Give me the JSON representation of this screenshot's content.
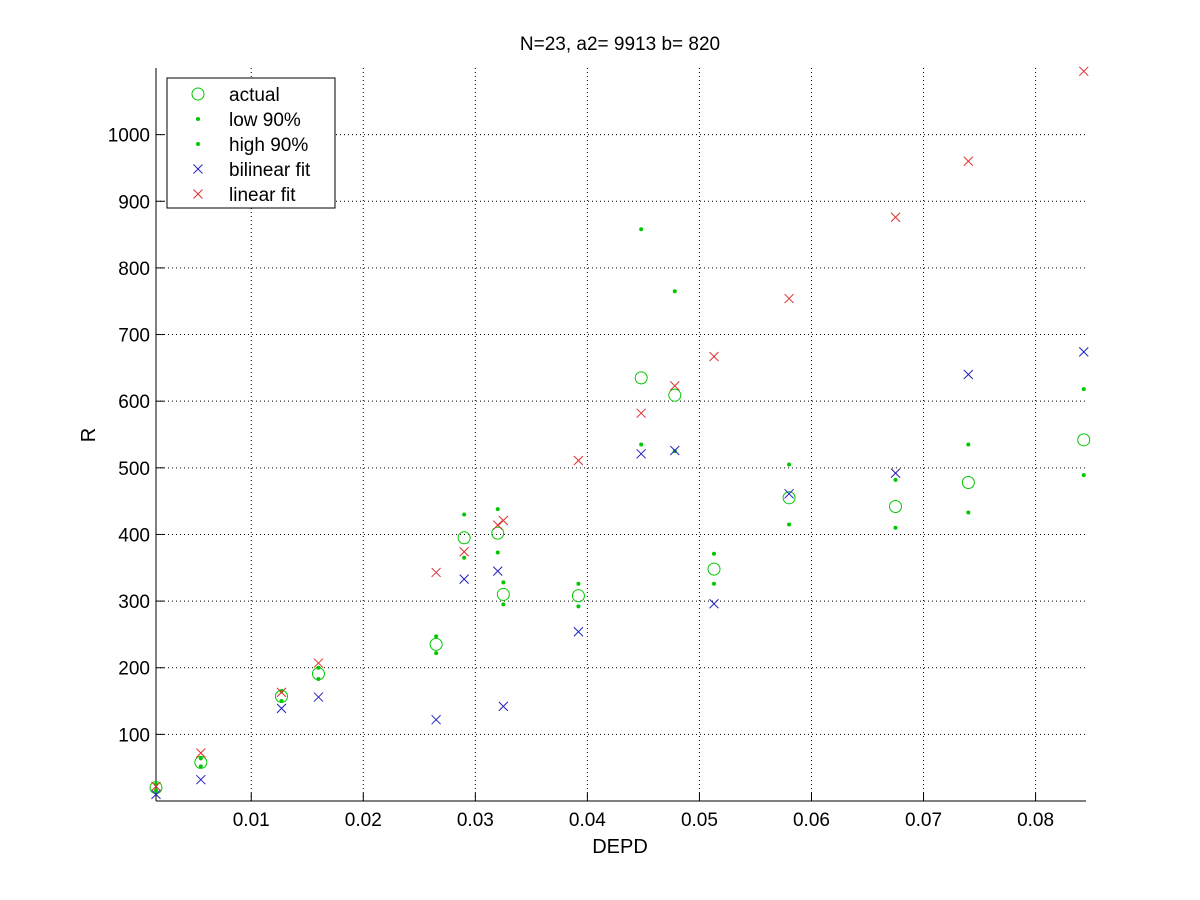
{
  "chart_data": {
    "type": "scatter",
    "title": "N=23, a2= 9913 b=  820",
    "xlabel": "DEPD",
    "ylabel": "R",
    "xlim": [
      0.0015,
      0.0845
    ],
    "ylim": [
      0,
      1100
    ],
    "xticks": [
      0.01,
      0.02,
      0.03,
      0.04,
      0.05,
      0.06,
      0.07,
      0.08
    ],
    "xtick_labels": [
      "0.01",
      "0.02",
      "0.03",
      "0.04",
      "0.05",
      "0.06",
      "0.07",
      "0.08"
    ],
    "yticks": [
      100,
      200,
      300,
      400,
      500,
      600,
      700,
      800,
      900,
      1000
    ],
    "ytick_labels": [
      "100",
      "200",
      "300",
      "400",
      "500",
      "600",
      "700",
      "800",
      "900",
      "1000"
    ],
    "grid": true,
    "legend_position": "top-left",
    "series": [
      {
        "name": "actual",
        "marker": "circle",
        "color": "#00c800",
        "points": [
          [
            0.0015,
            20
          ],
          [
            0.0055,
            58
          ],
          [
            0.0127,
            157
          ],
          [
            0.016,
            191
          ],
          [
            0.0265,
            235
          ],
          [
            0.029,
            395
          ],
          [
            0.032,
            402
          ],
          [
            0.0325,
            310
          ],
          [
            0.0392,
            308
          ],
          [
            0.0448,
            635
          ],
          [
            0.0478,
            609
          ],
          [
            0.0513,
            348
          ],
          [
            0.058,
            455
          ],
          [
            0.0675,
            442
          ],
          [
            0.074,
            478
          ],
          [
            0.0843,
            542
          ]
        ]
      },
      {
        "name": "low 90%",
        "marker": "dot",
        "color": "#00c800",
        "points": [
          [
            0.0015,
            16
          ],
          [
            0.0055,
            52
          ],
          [
            0.0127,
            150
          ],
          [
            0.016,
            183
          ],
          [
            0.0265,
            222
          ],
          [
            0.029,
            365
          ],
          [
            0.032,
            373
          ],
          [
            0.0325,
            295
          ],
          [
            0.0392,
            292
          ],
          [
            0.0448,
            535
          ],
          [
            0.0478,
            525
          ],
          [
            0.0513,
            326
          ],
          [
            0.058,
            415
          ],
          [
            0.0675,
            410
          ],
          [
            0.074,
            433
          ],
          [
            0.0843,
            489
          ]
        ]
      },
      {
        "name": "high 90%",
        "marker": "dot",
        "color": "#00c800",
        "points": [
          [
            0.0015,
            25
          ],
          [
            0.0055,
            64
          ],
          [
            0.0127,
            165
          ],
          [
            0.016,
            200
          ],
          [
            0.0265,
            247
          ],
          [
            0.029,
            430
          ],
          [
            0.032,
            438
          ],
          [
            0.0325,
            328
          ],
          [
            0.0392,
            326
          ],
          [
            0.0448,
            858
          ],
          [
            0.0478,
            765
          ],
          [
            0.0513,
            371
          ],
          [
            0.058,
            505
          ],
          [
            0.0675,
            482
          ],
          [
            0.074,
            535
          ],
          [
            0.0843,
            618
          ]
        ]
      },
      {
        "name": "bilinear fit",
        "marker": "x",
        "color": "#2020c0",
        "points": [
          [
            0.0015,
            10
          ],
          [
            0.0055,
            32
          ],
          [
            0.0127,
            139
          ],
          [
            0.016,
            156
          ],
          [
            0.0265,
            122
          ],
          [
            0.029,
            333
          ],
          [
            0.032,
            345
          ],
          [
            0.0325,
            142
          ],
          [
            0.0392,
            254
          ],
          [
            0.0448,
            521
          ],
          [
            0.0478,
            526
          ],
          [
            0.0513,
            296
          ],
          [
            0.058,
            461
          ],
          [
            0.0675,
            492
          ],
          [
            0.074,
            640
          ],
          [
            0.0843,
            674
          ]
        ]
      },
      {
        "name": "linear fit",
        "marker": "x",
        "color": "#e03030",
        "points": [
          [
            0.0015,
            22
          ],
          [
            0.0055,
            72
          ],
          [
            0.0127,
            163
          ],
          [
            0.016,
            207
          ],
          [
            0.0265,
            343
          ],
          [
            0.029,
            374
          ],
          [
            0.032,
            414
          ],
          [
            0.0325,
            421
          ],
          [
            0.0392,
            511
          ],
          [
            0.0448,
            582
          ],
          [
            0.0478,
            623
          ],
          [
            0.0513,
            667
          ],
          [
            0.058,
            754
          ],
          [
            0.0675,
            876
          ],
          [
            0.074,
            960
          ],
          [
            0.0843,
            1095
          ]
        ]
      }
    ]
  }
}
